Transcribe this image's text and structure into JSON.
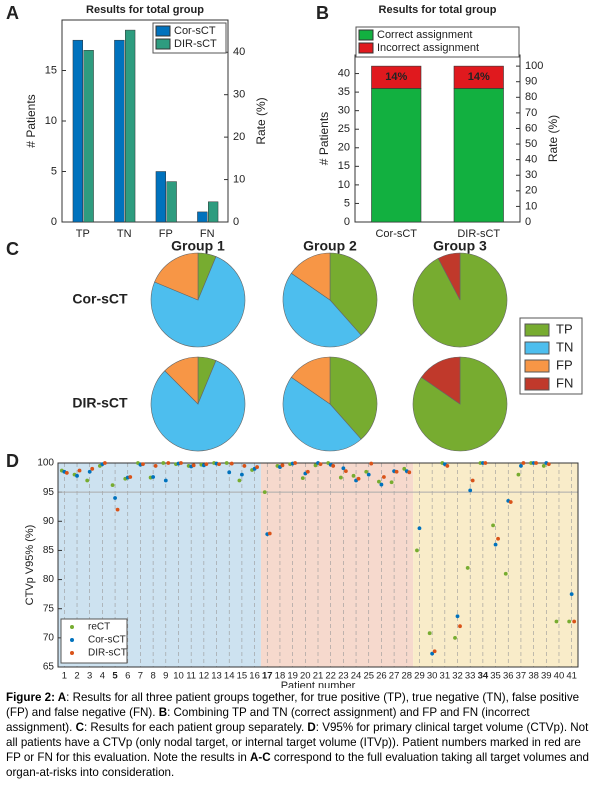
{
  "panel_labels": [
    "A",
    "B",
    "C",
    "D"
  ],
  "chart_data": [
    {
      "type": "bar",
      "title": "Results for total group",
      "categories": [
        "TP",
        "TN",
        "FP",
        "FN"
      ],
      "series": [
        {
          "name": "Cor-sCT",
          "color": "#0072bd",
          "values": [
            18,
            18,
            5,
            1
          ]
        },
        {
          "name": "DIR-sCT",
          "color": "#2e9c7f",
          "values": [
            17,
            19,
            4,
            2
          ]
        }
      ],
      "ylabel": "# Patients",
      "y2label": "Rate (%)",
      "ylim": [
        0,
        20
      ],
      "yticks": [
        0,
        5,
        10,
        15
      ],
      "y2lim": [
        0,
        47.6
      ],
      "y2ticks": [
        0,
        10,
        20,
        30,
        40
      ],
      "legend": "top-right"
    },
    {
      "type": "stacked",
      "title": "Results for total group",
      "categories": [
        "Cor-sCT",
        "DIR-sCT"
      ],
      "series": [
        {
          "name": "Correct assignment",
          "color": "#12b040",
          "values": [
            36,
            36
          ]
        },
        {
          "name": "Incorrect assignment",
          "color": "#e0191e",
          "values": [
            6,
            6
          ]
        }
      ],
      "annotations": [
        "14%",
        "14%"
      ],
      "ylabel": "# Patients",
      "y2label": "Rate (%)",
      "ylim": [
        0,
        45
      ],
      "yticks": [
        0,
        5,
        10,
        15,
        20,
        25,
        30,
        35,
        40
      ],
      "y2lim": [
        0,
        107.14
      ],
      "y2ticks": [
        0,
        10,
        20,
        30,
        40,
        50,
        60,
        70,
        80,
        90,
        100
      ],
      "legend": "top"
    },
    {
      "type": "pie",
      "groups": [
        "Group 1",
        "Group 2",
        "Group 3"
      ],
      "group_colors": [
        "#4472c4",
        "#ed7d31",
        "#ffc000"
      ],
      "rows": [
        "Cor-sCT",
        "DIR-sCT"
      ],
      "categories": [
        "TP",
        "TN",
        "FP",
        "FN"
      ],
      "colors": [
        "#77ac30",
        "#4dbeee",
        "#f79646",
        "#c0392b"
      ],
      "values": [
        [
          [
            1,
            12,
            3,
            0
          ],
          [
            5,
            6,
            2,
            0
          ],
          [
            12,
            0,
            0,
            1
          ]
        ],
        [
          [
            1,
            13,
            2,
            0
          ],
          [
            5,
            6,
            2,
            0
          ],
          [
            11,
            0,
            0,
            2
          ]
        ]
      ]
    },
    {
      "type": "scatter",
      "ylabel": "CTVp V95% (%)",
      "xlabel": "Patient number",
      "xlim": [
        0.5,
        41.5
      ],
      "ylim": [
        65,
        100
      ],
      "yticks": [
        65,
        70,
        75,
        80,
        85,
        90,
        95,
        100
      ],
      "xticks": [
        1,
        2,
        3,
        4,
        5,
        6,
        7,
        8,
        9,
        10,
        11,
        12,
        13,
        14,
        15,
        16,
        17,
        18,
        19,
        20,
        21,
        22,
        23,
        24,
        25,
        26,
        27,
        28,
        29,
        30,
        31,
        32,
        33,
        34,
        35,
        36,
        37,
        38,
        39,
        40,
        41
      ],
      "highlighted": [
        5,
        17,
        34
      ],
      "reference_line": 95,
      "group_ranges": [
        [
          1,
          16
        ],
        [
          17,
          28
        ],
        [
          29,
          41
        ]
      ],
      "group_colors": [
        "#cde2f0",
        "#f6d9cd",
        "#f9ecc9"
      ],
      "series": [
        {
          "name": "reCT",
          "color": "#77ac30",
          "values": [
            98.7,
            98,
            97,
            99.5,
            96.2,
            97.3,
            100,
            97.5,
            100,
            99.8,
            99.5,
            99.7,
            100,
            100,
            97,
            98.8,
            95,
            99.5,
            99.8,
            97.4,
            99.6,
            100,
            97.5,
            97.8,
            98.5,
            96.8,
            96.7,
            99,
            85,
            70.8,
            100,
            70,
            82,
            100,
            89.3,
            81,
            98,
            100,
            99.5,
            72.8,
            72.8
          ]
        },
        {
          "name": "Cor-sCT",
          "color": "#0072bd",
          "values": [
            98.5,
            97.8,
            98.5,
            99.8,
            94,
            97.5,
            99.7,
            97.6,
            97,
            99.9,
            99.4,
            99.6,
            99.9,
            98.4,
            98,
            99,
            87.8,
            99.3,
            99.9,
            98.2,
            100,
            99.7,
            99.1,
            97,
            98,
            96.3,
            98.6,
            98.6,
            88.8,
            67.3,
            99.8,
            73.7,
            95.3,
            100,
            86,
            93.5,
            99.5,
            100,
            100,
            null,
            77.5
          ]
        },
        {
          "name": "DIR-sCT",
          "color": "#d95319",
          "values": [
            98.3,
            98.7,
            99,
            100,
            92,
            97.6,
            99.8,
            99.5,
            100,
            100,
            99.6,
            99.8,
            99.8,
            99.9,
            99.5,
            99.3,
            87.9,
            99.6,
            100,
            98.5,
            99.8,
            99.5,
            98.6,
            97.3,
            99.9,
            97.6,
            98.5,
            98.4,
            null,
            67.7,
            99.5,
            72,
            97,
            100,
            87,
            93.3,
            100,
            100,
            99.8,
            null,
            72.8
          ]
        }
      ],
      "legend": "bottom-left"
    }
  ],
  "caption": [
    {
      "text": "Figure 2: ",
      "bold": true
    },
    {
      "text": "A",
      "bold": true
    },
    {
      "text": ": Results for all three patient groups together, for true positive (TP), true negative (TN), false positive (FP) and false negative (FN). ",
      "bold": false
    },
    {
      "text": "B",
      "bold": true
    },
    {
      "text": ": Combining TP and TN (correct assignment) and FP and FN (incorrect assignment). ",
      "bold": false
    },
    {
      "text": "C",
      "bold": true
    },
    {
      "text": ": Results for each patient group separately. ",
      "bold": false
    },
    {
      "text": "D",
      "bold": true
    },
    {
      "text": ": V95% for primary clinical target volume (CTVp). Not all patients have a CTVp (only nodal target, or internal target volume (ITVp)). Patient numbers marked in red are FP or FN for this evaluation. Note the results in ",
      "bold": false
    },
    {
      "text": "A-C",
      "bold": true
    },
    {
      "text": " correspond to the full evaluation taking all target volumes and organ-at-risks into consideration.",
      "bold": false
    }
  ]
}
